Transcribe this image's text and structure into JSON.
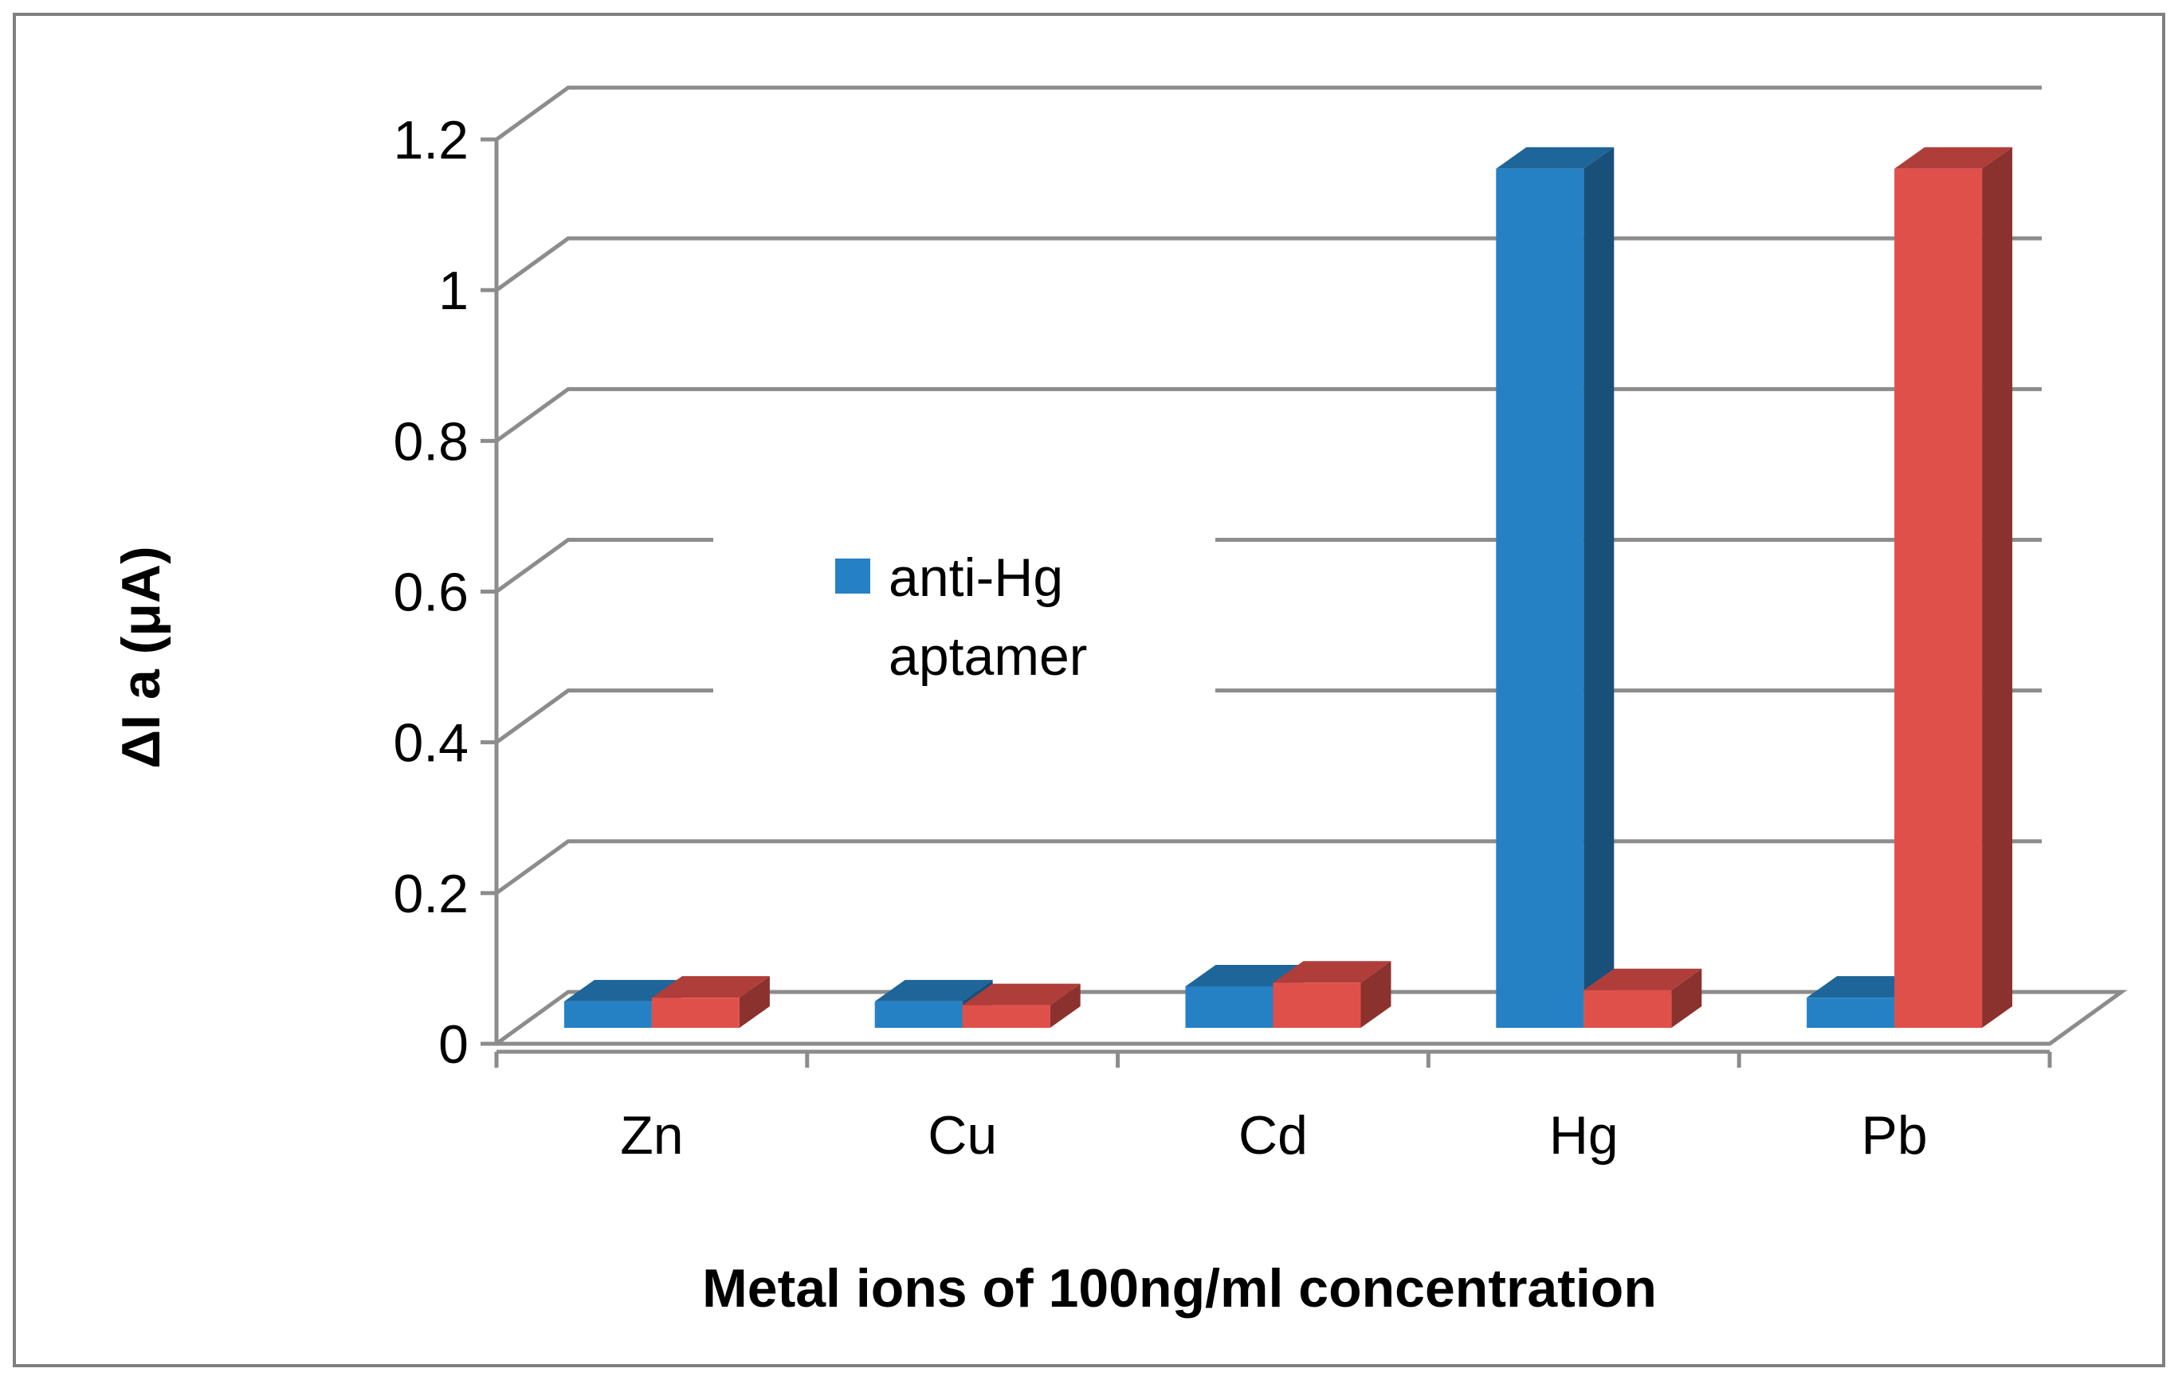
{
  "chart_data": {
    "type": "bar",
    "style": "3d-clustered-column",
    "title": "",
    "xlabel": "Metal ions of 100ng/ml concentration",
    "ylabel": "ΔI a (μA)",
    "ylim": [
      0,
      1.2
    ],
    "yticks": [
      "0",
      "0.2",
      "0.4",
      "0.6",
      "0.8",
      "1",
      "1.2"
    ],
    "categories": [
      "Zn",
      "Cu",
      "Cd",
      "Hg",
      "Pb"
    ],
    "grid": true,
    "legend_position": "center-left",
    "series": [
      {
        "name": "anti-Hg aptamer",
        "values": [
          0.035,
          0.035,
          0.055,
          1.14,
          0.04
        ],
        "color": "#2681C4"
      },
      {
        "name": "",
        "values": [
          0.04,
          0.03,
          0.06,
          0.05,
          1.14
        ],
        "color": "#E0504A"
      }
    ]
  },
  "legend": {
    "line1": "anti-Hg",
    "line2": "aptamer"
  },
  "colors": {
    "frame": "#7f7f7f",
    "grid": "#8c8c8c"
  }
}
